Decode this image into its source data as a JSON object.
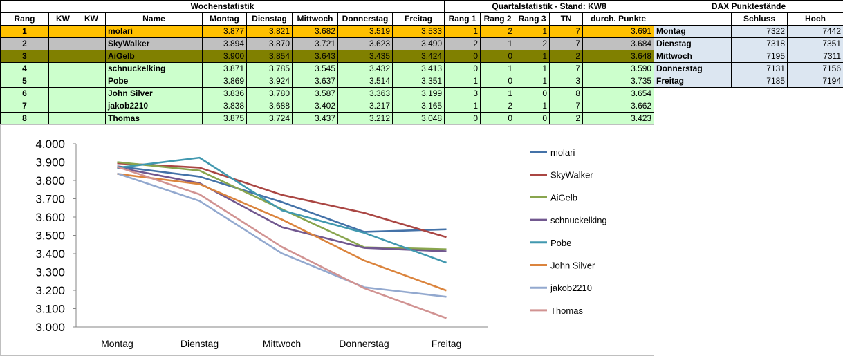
{
  "wochen_title": "Wochenstatistik",
  "quartal_title": "Quartalstatistik - Stand: KW8",
  "dax_title": "DAX Punktestände",
  "headers": [
    "Rang",
    "KW",
    "KW",
    "Name",
    "Montag",
    "Dienstag",
    "Mittwoch",
    "Donnerstag",
    "Freitag",
    "Rang 1",
    "Rang 2",
    "Rang 3",
    "TN",
    "durch. Punkte"
  ],
  "rows": [
    {
      "rang": "1",
      "name": "molari",
      "mo": "3.877",
      "di": "3.821",
      "mi": "3.682",
      "do": "3.519",
      "fr": "3.533",
      "r1": "1",
      "r2": "2",
      "r3": "1",
      "tn": "7",
      "avg": "3.691"
    },
    {
      "rang": "2",
      "name": "SkyWalker",
      "mo": "3.894",
      "di": "3.870",
      "mi": "3.721",
      "do": "3.623",
      "fr": "3.490",
      "r1": "2",
      "r2": "1",
      "r3": "2",
      "tn": "7",
      "avg": "3.684"
    },
    {
      "rang": "3",
      "name": "AiGelb",
      "mo": "3.900",
      "di": "3.854",
      "mi": "3.643",
      "do": "3.435",
      "fr": "3.424",
      "r1": "0",
      "r2": "0",
      "r3": "1",
      "tn": "2",
      "avg": "3.648"
    },
    {
      "rang": "4",
      "name": "schnuckelking",
      "mo": "3.871",
      "di": "3.785",
      "mi": "3.545",
      "do": "3.432",
      "fr": "3.413",
      "r1": "0",
      "r2": "1",
      "r3": "1",
      "tn": "7",
      "avg": "3.590"
    },
    {
      "rang": "5",
      "name": "Pobe",
      "mo": "3.869",
      "di": "3.924",
      "mi": "3.637",
      "do": "3.514",
      "fr": "3.351",
      "r1": "1",
      "r2": "0",
      "r3": "1",
      "tn": "3",
      "avg": "3.735"
    },
    {
      "rang": "6",
      "name": "John Silver",
      "mo": "3.836",
      "di": "3.780",
      "mi": "3.587",
      "do": "3.363",
      "fr": "3.199",
      "r1": "3",
      "r2": "1",
      "r3": "0",
      "tn": "8",
      "avg": "3.654"
    },
    {
      "rang": "7",
      "name": "jakob2210",
      "mo": "3.838",
      "di": "3.688",
      "mi": "3.402",
      "do": "3.217",
      "fr": "3.165",
      "r1": "1",
      "r2": "2",
      "r3": "1",
      "tn": "7",
      "avg": "3.662"
    },
    {
      "rang": "8",
      "name": "Thomas",
      "mo": "3.875",
      "di": "3.724",
      "mi": "3.437",
      "do": "3.212",
      "fr": "3.048",
      "r1": "0",
      "r2": "0",
      "r3": "0",
      "tn": "2",
      "avg": "3.423"
    }
  ],
  "dax": {
    "headers": [
      "Schluss",
      "Hoch"
    ],
    "rows": [
      {
        "day": "Montag",
        "schluss": "7322",
        "hoch": "7442"
      },
      {
        "day": "Dienstag",
        "schluss": "7318",
        "hoch": "7351"
      },
      {
        "day": "Mittwoch",
        "schluss": "7195",
        "hoch": "7311"
      },
      {
        "day": "Donnerstag",
        "schluss": "7131",
        "hoch": "7156"
      },
      {
        "day": "Freitag",
        "schluss": "7185",
        "hoch": "7194"
      }
    ]
  },
  "chart_data": {
    "type": "line",
    "categories": [
      "Montag",
      "Dienstag",
      "Mittwoch",
      "Donnerstag",
      "Freitag"
    ],
    "ylim": [
      3.0,
      4.0
    ],
    "yticks": [
      "3.000",
      "3.100",
      "3.200",
      "3.300",
      "3.400",
      "3.500",
      "3.600",
      "3.700",
      "3.800",
      "3.900",
      "4.000"
    ],
    "grid": false,
    "legend": "right",
    "series": [
      {
        "name": "molari",
        "color": "#4472a8",
        "values": [
          3.877,
          3.821,
          3.682,
          3.519,
          3.533
        ]
      },
      {
        "name": "SkyWalker",
        "color": "#aa4643",
        "values": [
          3.894,
          3.87,
          3.721,
          3.623,
          3.49
        ]
      },
      {
        "name": "AiGelb",
        "color": "#89a54e",
        "values": [
          3.9,
          3.854,
          3.643,
          3.435,
          3.424
        ]
      },
      {
        "name": "schnuckelking",
        "color": "#71588f",
        "values": [
          3.871,
          3.785,
          3.545,
          3.432,
          3.413
        ]
      },
      {
        "name": "Pobe",
        "color": "#4198af",
        "values": [
          3.869,
          3.924,
          3.637,
          3.514,
          3.351
        ]
      },
      {
        "name": "John Silver",
        "color": "#db843d",
        "values": [
          3.836,
          3.78,
          3.587,
          3.363,
          3.199
        ]
      },
      {
        "name": "jakob2210",
        "color": "#93a9cf",
        "values": [
          3.838,
          3.688,
          3.402,
          3.217,
          3.165
        ]
      },
      {
        "name": "Thomas",
        "color": "#d19392",
        "values": [
          3.875,
          3.724,
          3.437,
          3.212,
          3.048
        ]
      }
    ]
  }
}
